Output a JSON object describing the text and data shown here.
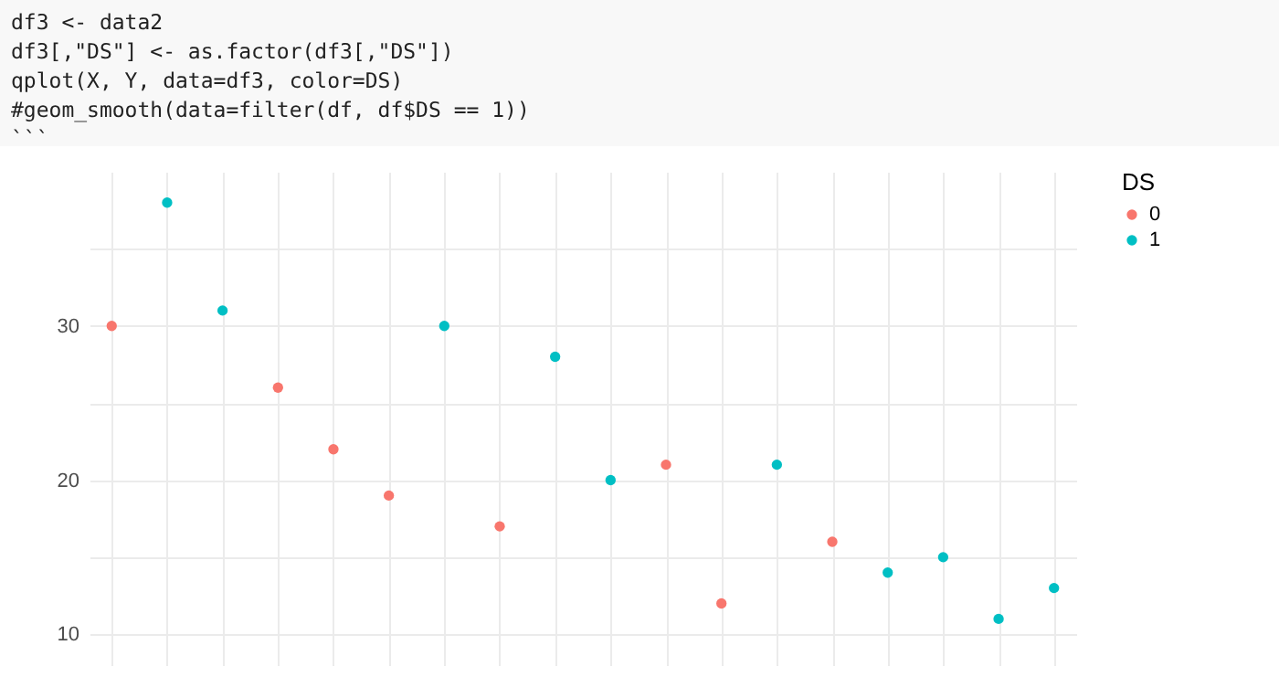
{
  "chart_data": {
    "type": "scatter",
    "annotations": [
      "df3 <- data2",
      "df3[,\"DS\"] <- as.factor(df3[,\"DS\"])",
      "qplot(X, Y, data=df3, color=DS)",
      "#geom_smooth(data=filter(df, df$DS == 1))",
      "```"
    ],
    "legend_title": "DS",
    "categories": [
      null,
      null,
      null,
      null,
      null,
      null,
      null,
      null,
      null,
      null,
      null,
      null,
      null,
      null,
      null,
      null,
      null,
      null
    ],
    "series": [
      {
        "name": "0",
        "color": "#f8766d",
        "values": [
          30,
          null,
          null,
          26,
          22,
          19,
          null,
          17,
          null,
          null,
          21,
          12,
          null,
          16,
          null,
          null,
          null,
          null
        ]
      },
      {
        "name": "1",
        "color": "#00bfc4",
        "values": [
          null,
          38,
          31,
          null,
          null,
          null,
          30,
          null,
          28,
          20,
          null,
          null,
          21,
          null,
          14,
          15,
          11,
          13
        ]
      }
    ],
    "ylim": [
      8,
      40
    ],
    "yticks": [
      10,
      {
        "value": 15,
        "label": null
      },
      20,
      {
        "value": 25,
        "label": null
      },
      30,
      {
        "value": 35,
        "label": null
      }
    ],
    "tick_labels": "y",
    "grid": true,
    "legend": "right",
    "marker": "circle"
  }
}
